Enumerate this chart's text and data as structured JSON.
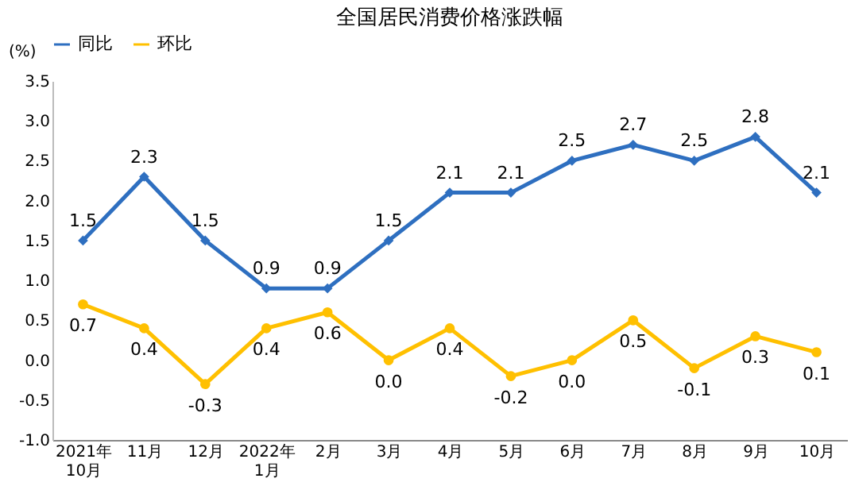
{
  "chart_data": {
    "type": "line",
    "title": "全国居民消费价格涨跌幅",
    "ylabel": "(%)",
    "categories": [
      "2021年\n10月",
      "11月",
      "12月",
      "2022年\n1月",
      "2月",
      "3月",
      "4月",
      "5月",
      "6月",
      "7月",
      "8月",
      "9月",
      "10月"
    ],
    "series": [
      {
        "name": "同比",
        "color": "#2e6fc0",
        "marker": "diamond",
        "values": [
          1.5,
          2.3,
          1.5,
          0.9,
          0.9,
          1.5,
          2.1,
          2.1,
          2.5,
          2.7,
          2.5,
          2.8,
          2.1
        ],
        "value_labels": [
          "1.5",
          "2.3",
          "1.5",
          "0.9",
          "0.9",
          "1.5",
          "2.1",
          "2.1",
          "2.5",
          "2.7",
          "2.5",
          "2.8",
          "2.1"
        ]
      },
      {
        "name": "环比",
        "color": "#ffc000",
        "marker": "circle",
        "values": [
          0.7,
          0.4,
          -0.3,
          0.4,
          0.6,
          0.0,
          0.4,
          -0.2,
          0.0,
          0.5,
          -0.1,
          0.3,
          0.1
        ],
        "value_labels": [
          "0.7",
          "0.4",
          "-0.3",
          "0.4",
          "0.6",
          "0.0",
          "0.4",
          "-0.2",
          "0.0",
          "0.5",
          "-0.1",
          "0.3",
          "0.1"
        ]
      }
    ],
    "ylim": [
      -1.0,
      3.5
    ],
    "yticks": [
      {
        "value": -1.0,
        "label": "-1.0"
      },
      {
        "value": -0.5,
        "label": "-0.5"
      },
      {
        "value": 0,
        "label": "0.0"
      },
      {
        "value": 0.5,
        "label": "0.5"
      },
      {
        "value": 1,
        "label": "1.0"
      },
      {
        "value": 1.5,
        "label": "1.5"
      },
      {
        "value": 2,
        "label": "2.0"
      },
      {
        "value": 2.5,
        "label": "2.5"
      },
      {
        "value": 3,
        "label": "3.0"
      },
      {
        "value": 3.5,
        "label": "3.5"
      }
    ],
    "grid": false,
    "legend": "top",
    "line_style": "solid"
  }
}
